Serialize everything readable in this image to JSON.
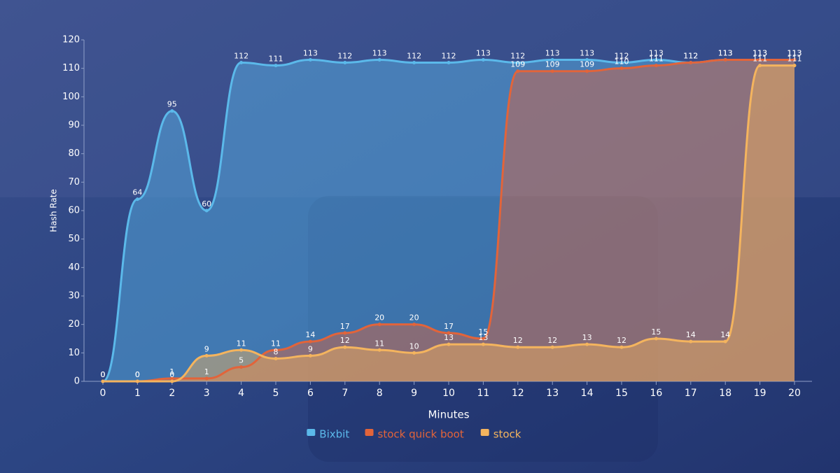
{
  "chart_data": {
    "type": "line",
    "x_label": "Minutes",
    "y_label": "Hash Rate",
    "x": [
      0,
      1,
      2,
      3,
      4,
      5,
      6,
      7,
      8,
      9,
      10,
      11,
      12,
      13,
      14,
      15,
      16,
      17,
      18,
      19,
      20
    ],
    "series": [
      {
        "name": "Bixbit",
        "color": "#5bb9ea",
        "values": [
          0,
          64,
          95,
          60,
          112,
          111,
          113,
          112,
          113,
          112,
          112,
          113,
          112,
          113,
          113,
          112,
          113,
          112,
          113,
          113,
          113
        ]
      },
      {
        "name": "stock quick boot",
        "color": "#e2643a",
        "values": [
          0,
          0,
          1,
          1,
          5,
          11,
          14,
          17,
          20,
          20,
          17,
          15,
          109,
          109,
          109,
          110,
          111,
          112,
          113,
          113,
          113
        ]
      },
      {
        "name": "stock",
        "color": "#f4b45e",
        "values": [
          0,
          0,
          0,
          9,
          11,
          8,
          9,
          12,
          11,
          10,
          13,
          13,
          12,
          12,
          13,
          12,
          15,
          14,
          14,
          111,
          111
        ]
      }
    ],
    "xlim": [
      0,
      20
    ],
    "xticks": [
      0,
      1,
      2,
      3,
      4,
      5,
      6,
      7,
      8,
      9,
      10,
      11,
      12,
      13,
      14,
      15,
      16,
      17,
      18,
      19,
      20
    ],
    "ylim": [
      0,
      120
    ],
    "yticks": [
      0,
      10,
      20,
      30,
      40,
      50,
      60,
      70,
      80,
      90,
      100,
      110,
      120
    ],
    "legend": "bottom"
  }
}
